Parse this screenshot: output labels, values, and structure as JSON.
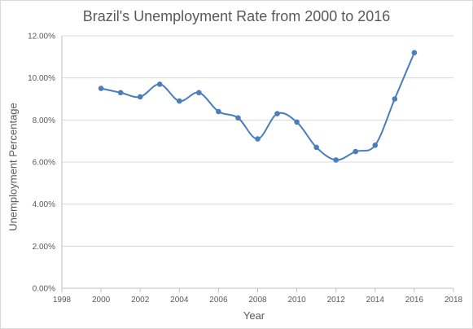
{
  "chart_data": {
    "type": "scatter",
    "title": "Brazil's Unemployment Rate from 2000 to 2016",
    "xlabel": "Year",
    "ylabel": "Unemployment Percentage",
    "xlim": [
      1998,
      2018
    ],
    "ylim": [
      0,
      12
    ],
    "x_ticks": [
      "1998",
      "2000",
      "2002",
      "2004",
      "2006",
      "2008",
      "2010",
      "2012",
      "2014",
      "2016",
      "2018"
    ],
    "y_ticks": [
      "0.00%",
      "2.00%",
      "4.00%",
      "6.00%",
      "8.00%",
      "10.00%",
      "12.00%"
    ],
    "grid": "horizontal",
    "legend": "none",
    "line_style": "smooth",
    "color": "#4a7ebb",
    "series": [
      {
        "x": [
          2000,
          2001,
          2002,
          2003,
          2004,
          2005,
          2006,
          2007,
          2008,
          2009,
          2010,
          2011,
          2012,
          2013,
          2014,
          2015,
          2016
        ],
        "y": [
          9.5,
          9.3,
          9.1,
          9.7,
          8.9,
          9.3,
          8.4,
          8.1,
          7.1,
          8.3,
          7.9,
          6.7,
          6.1,
          6.5,
          6.8,
          9.0,
          11.2
        ]
      }
    ]
  }
}
